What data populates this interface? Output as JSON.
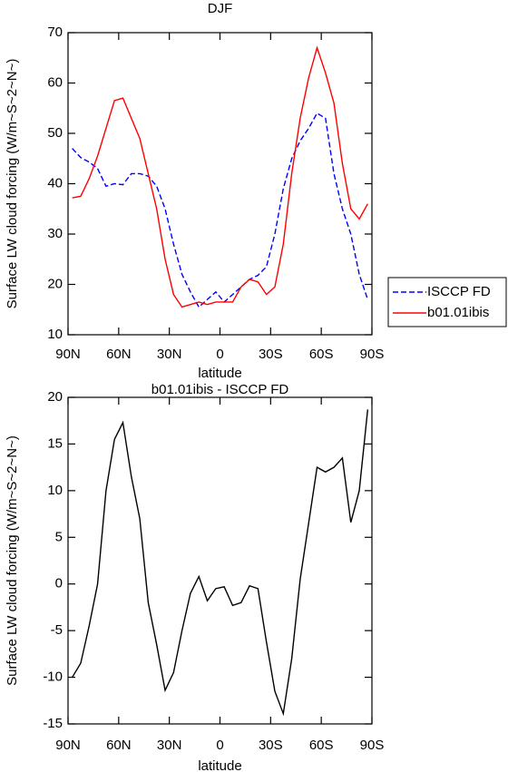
{
  "chart_data": [
    {
      "type": "line",
      "title": "DJF",
      "xlabel": "latitude",
      "ylabel": "Surface LW cloud forcing (W/m~S~2~N~)",
      "x": [
        87.5,
        82.5,
        77.5,
        72.5,
        67.5,
        62.5,
        57.5,
        52.5,
        47.5,
        42.5,
        37.5,
        32.5,
        27.5,
        22.5,
        17.5,
        12.5,
        7.5,
        2.5,
        -2.5,
        -7.5,
        -12.5,
        -17.5,
        -22.5,
        -27.5,
        -32.5,
        -37.5,
        -42.5,
        -47.5,
        -52.5,
        -57.5,
        -62.5,
        -67.5,
        -72.5,
        -77.5,
        -82.5,
        -87.5
      ],
      "series": [
        {
          "name": "ISCCP FD",
          "color": "#0000ff",
          "linestyle": "dashed",
          "values": [
            47,
            45.2,
            44.3,
            43,
            39.5,
            40,
            39.8,
            42,
            42,
            41.5,
            39.5,
            35,
            28,
            22,
            18.5,
            15.5,
            17,
            18.5,
            16.5,
            18,
            19.5,
            21,
            21.8,
            23.5,
            30,
            39,
            45,
            48.5,
            51,
            54,
            53,
            42,
            35,
            30,
            22,
            17
          ]
        },
        {
          "name": "b01.01ibis",
          "color": "#ff0000",
          "linestyle": "solid",
          "values": [
            37.2,
            37.5,
            41,
            45.5,
            51,
            56.5,
            57,
            53,
            49,
            42,
            35,
            25,
            18,
            15.5,
            16,
            16.5,
            16,
            16.5,
            16.5,
            16.5,
            19.5,
            21,
            20.5,
            18,
            19.5,
            28,
            42,
            53,
            61,
            67,
            62,
            56,
            44,
            35,
            33,
            36
          ]
        }
      ],
      "xlim": [
        90,
        -90
      ],
      "xticks": [
        {
          "value": 90,
          "label": "90N"
        },
        {
          "value": 60,
          "label": "60N"
        },
        {
          "value": 30,
          "label": "30N"
        },
        0,
        {
          "value": -30,
          "label": "30S"
        },
        {
          "value": -60,
          "label": "60S"
        },
        {
          "value": -90,
          "label": "90S"
        }
      ],
      "ylim": [
        10,
        70
      ],
      "yticks": [
        10,
        20,
        30,
        40,
        50,
        60,
        70
      ],
      "legend": "right"
    },
    {
      "type": "line",
      "title": "b01.01ibis - ISCCP FD",
      "xlabel": "latitude",
      "ylabel": "Surface LW cloud forcing (W/m~S~2~N~)",
      "x": [
        87.5,
        82.5,
        77.5,
        72.5,
        67.5,
        62.5,
        57.5,
        52.5,
        47.5,
        42.5,
        37.5,
        32.5,
        27.5,
        22.5,
        17.5,
        12.5,
        7.5,
        2.5,
        -2.5,
        -7.5,
        -12.5,
        -17.5,
        -22.5,
        -27.5,
        -32.5,
        -37.5,
        -42.5,
        -47.5,
        -52.5,
        -57.5,
        -62.5,
        -67.5,
        -72.5,
        -77.5,
        -82.5,
        -87.5
      ],
      "values": [
        -10,
        -8.5,
        -4.5,
        0,
        10,
        15.5,
        17.3,
        11.5,
        7,
        -2,
        -6.5,
        -11.4,
        -9.5,
        -5,
        -1,
        0.8,
        -1.8,
        -0.5,
        -0.3,
        -2.3,
        -2,
        -0.2,
        -0.5,
        -6.2,
        -11.5,
        -13.9,
        -8,
        0.5,
        6.5,
        12.5,
        12,
        12.5,
        13.5,
        6.6,
        10,
        18.7
      ],
      "color": "#000000",
      "xlim": [
        90,
        -90
      ],
      "xticks": [
        {
          "value": 90,
          "label": "90N"
        },
        {
          "value": 60,
          "label": "60N"
        },
        {
          "value": 30,
          "label": "30N"
        },
        0,
        {
          "value": -30,
          "label": "30S"
        },
        {
          "value": -60,
          "label": "60S"
        },
        {
          "value": -90,
          "label": "90S"
        }
      ],
      "ylim": [
        -15,
        20
      ],
      "yticks": [
        -15,
        -10,
        -5,
        0,
        5,
        10,
        15,
        20
      ]
    }
  ]
}
